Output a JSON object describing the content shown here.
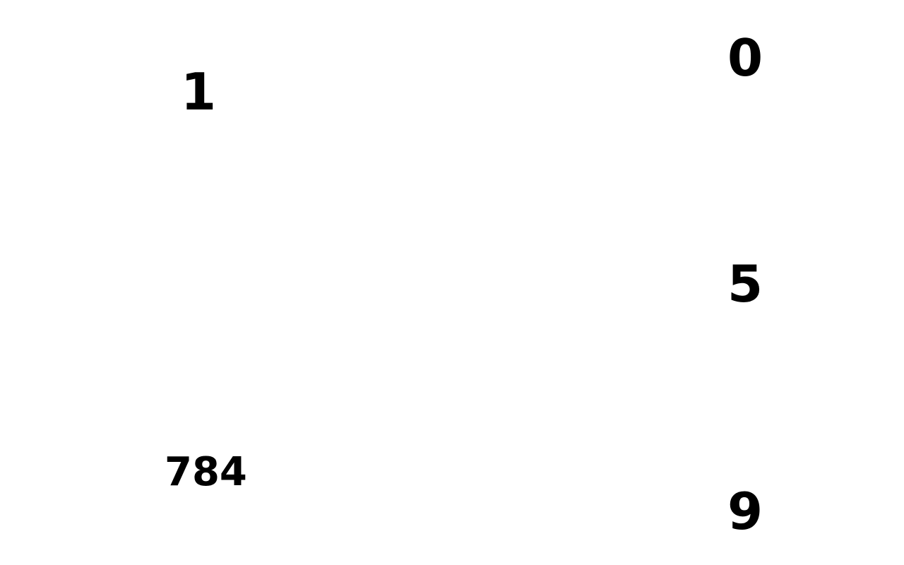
{
  "numbers": {
    "left_top": "1",
    "left_bottom": "784",
    "right_top": "0",
    "right_middle": "5",
    "right_bottom": "9"
  },
  "colors": {
    "background": "#ffffff",
    "text": "#000000"
  }
}
